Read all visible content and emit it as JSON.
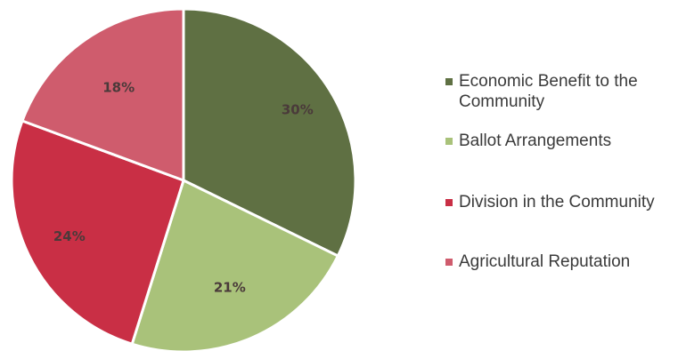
{
  "chart_data": {
    "type": "pie",
    "title": "",
    "slices": [
      {
        "name": "Economic Benefit to the Community",
        "value": 30,
        "label": "30%",
        "color": "#5f7043"
      },
      {
        "name": "Ballot Arrangements",
        "value": 21,
        "label": "21%",
        "color": "#a9c27a"
      },
      {
        "name": "Division in the Community",
        "value": 24,
        "label": "24%",
        "color": "#c92f45"
      },
      {
        "name": "Agricultural Reputation",
        "value": 18,
        "label": "18%",
        "color": "#cf5c6d"
      }
    ],
    "legend_placement": "right"
  }
}
